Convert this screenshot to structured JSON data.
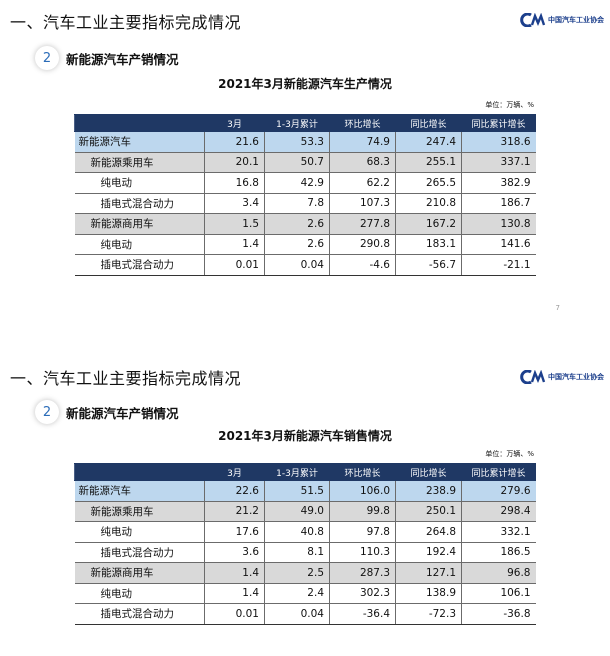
{
  "slides": [
    {
      "heading": "一、汽车工业主要指标完成情况",
      "logo_text": "中国汽车工业协会",
      "section_number": "2",
      "section_title": "新能源汽车产销情况",
      "table_title": "2021年3月新能源汽车生产情况",
      "unit": "单位：万辆、%",
      "page_number": "7",
      "columns": [
        "",
        "3月",
        "1-3月累计",
        "环比增长",
        "同比增长",
        "同比累计增长"
      ],
      "rows": [
        [
          "新能源汽车",
          "21.6",
          "53.3",
          "74.9",
          "247.4",
          "318.6"
        ],
        [
          "新能源乘用车",
          "20.1",
          "50.7",
          "68.3",
          "255.1",
          "337.1"
        ],
        [
          "纯电动",
          "16.8",
          "42.9",
          "62.2",
          "265.5",
          "382.9"
        ],
        [
          "插电式混合动力",
          "3.4",
          "7.8",
          "107.3",
          "210.8",
          "186.7"
        ],
        [
          "新能源商用车",
          "1.5",
          "2.6",
          "277.8",
          "167.2",
          "130.8"
        ],
        [
          "纯电动",
          "1.4",
          "2.6",
          "290.8",
          "183.1",
          "141.6"
        ],
        [
          "插电式混合动力",
          "0.01",
          "0.04",
          "-4.6",
          "-56.7",
          "-21.1"
        ]
      ]
    },
    {
      "heading": "一、汽车工业主要指标完成情况",
      "logo_text": "中国汽车工业协会",
      "section_number": "2",
      "section_title": "新能源汽车产销情况",
      "table_title": "2021年3月新能源汽车销售情况",
      "unit": "单位：万辆、%",
      "columns": [
        "",
        "3月",
        "1-3月累计",
        "环比增长",
        "同比增长",
        "同比累计增长"
      ],
      "rows": [
        [
          "新能源汽车",
          "22.6",
          "51.5",
          "106.0",
          "238.9",
          "279.6"
        ],
        [
          "新能源乘用车",
          "21.2",
          "49.0",
          "99.8",
          "250.1",
          "298.4"
        ],
        [
          "纯电动",
          "17.6",
          "40.8",
          "97.8",
          "264.8",
          "332.1"
        ],
        [
          "插电式混合动力",
          "3.6",
          "8.1",
          "110.3",
          "192.4",
          "186.5"
        ],
        [
          "新能源商用车",
          "1.4",
          "2.5",
          "287.3",
          "127.1",
          "96.8"
        ],
        [
          "纯电动",
          "1.4",
          "2.4",
          "302.3",
          "138.9",
          "106.1"
        ],
        [
          "插电式混合动力",
          "0.01",
          "0.04",
          "-36.4",
          "-72.3",
          "-36.8"
        ]
      ]
    }
  ]
}
